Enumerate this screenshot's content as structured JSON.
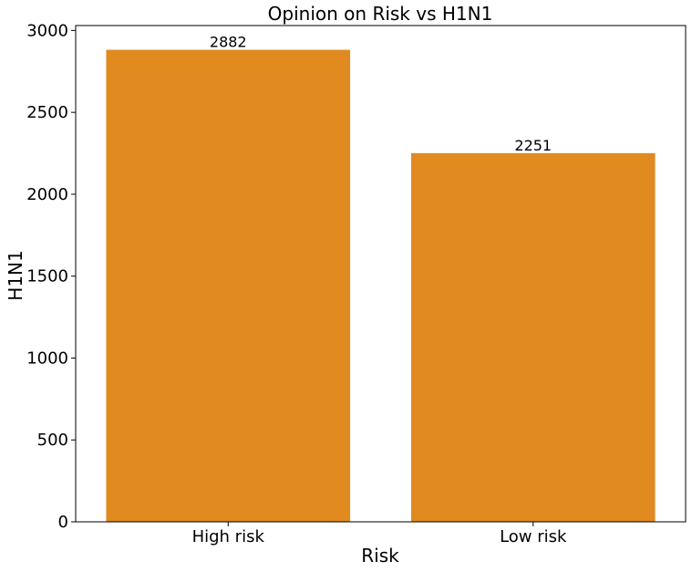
{
  "chart_data": {
    "type": "bar",
    "title": "Opinion on Risk vs H1N1",
    "xlabel": "Risk",
    "ylabel": "H1N1",
    "categories": [
      "High risk",
      "Low risk"
    ],
    "values": [
      2882,
      2251
    ],
    "data_labels": [
      "2882",
      "2251"
    ],
    "ylim": [
      0,
      3030
    ],
    "yticks": [
      0,
      500,
      1000,
      1500,
      2000,
      2500,
      3000
    ],
    "ytick_labels": [
      "0",
      "500",
      "1000",
      "1500",
      "2000",
      "2500",
      "3000"
    ],
    "bar_color": "#e08a20",
    "grid": false,
    "legend": "none"
  }
}
